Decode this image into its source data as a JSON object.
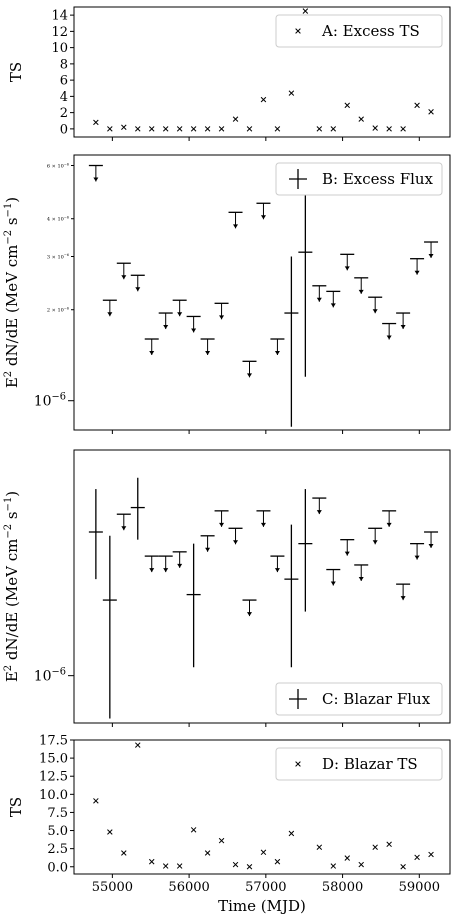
{
  "chart_data": [
    {
      "id": "A",
      "type": "scatter",
      "marker": "x",
      "ylabel": "TS",
      "legend": {
        "label": "A: Excess TS",
        "placement": "top-right"
      },
      "ylim": [
        -1,
        15
      ],
      "yticks": [
        0,
        2,
        4,
        6,
        8,
        10,
        12,
        14
      ],
      "ytick_labels": [
        "0",
        "2",
        "4",
        "6",
        "8",
        "10",
        "12",
        "14"
      ],
      "x": [
        54785,
        54967,
        55149,
        55331,
        55513,
        55695,
        55877,
        56059,
        56241,
        56423,
        56605,
        56787,
        56969,
        57151,
        57333,
        57515,
        57697,
        57879,
        58061,
        58243,
        58425,
        58607,
        58789,
        58971,
        59153
      ],
      "y": [
        0.8,
        0.0,
        0.2,
        0.0,
        0.0,
        0.0,
        0.0,
        0.0,
        0.0,
        0.0,
        1.2,
        0.0,
        3.6,
        0.0,
        4.4,
        14.5,
        0.0,
        0.0,
        2.9,
        1.2,
        0.1,
        0.0,
        0.0,
        2.9,
        2.1
      ]
    },
    {
      "id": "B",
      "type": "scatter",
      "marker": "errorbar",
      "ylabel": "E$^2$dN/dE (MeV cm$^{-2}$s$^{-1}$)",
      "ylabel_parts": {
        "pre": "E",
        "sup1": "2",
        "mid": " dN/dE (MeV cm",
        "sup2": "−2",
        "mid2": " s",
        "sup3": "−1",
        "post": ")"
      },
      "yscale": "log",
      "legend": {
        "label": "B: Excess Flux",
        "placement": "top-right"
      },
      "ylim": [
        8e-07,
        6.5e-06
      ],
      "major_tick": {
        "value": 1e-06,
        "label": "10",
        "exp": "−6"
      },
      "minor_ticks": [
        {
          "value": 2e-06,
          "label": "2 × 10",
          "exp": "−6"
        },
        {
          "value": 3e-06,
          "label": "3 × 10",
          "exp": "−6"
        },
        {
          "value": 4e-06,
          "label": "4 × 10",
          "exp": "−6"
        },
        {
          "value": 6e-06,
          "label": "6 × 10",
          "exp": "−6"
        }
      ],
      "x": [
        54785,
        54967,
        55149,
        55331,
        55513,
        55695,
        55877,
        56059,
        56241,
        56423,
        56605,
        56787,
        56969,
        57151,
        57333,
        57515,
        57697,
        57879,
        58061,
        58243,
        58425,
        58607,
        58789,
        58971,
        59153
      ],
      "y": [
        6e-06,
        2.15e-06,
        2.85e-06,
        2.6e-06,
        1.6e-06,
        1.95e-06,
        2.15e-06,
        1.9e-06,
        1.6e-06,
        2.1e-06,
        4.2e-06,
        1.35e-06,
        4.5e-06,
        1.6e-06,
        1.95e-06,
        3.1e-06,
        2.4e-06,
        2.3e-06,
        3.05e-06,
        2.55e-06,
        2.2e-06,
        1.8e-06,
        1.95e-06,
        2.95e-06,
        3.35e-06
      ],
      "upper_limit": [
        true,
        true,
        true,
        true,
        true,
        true,
        true,
        true,
        true,
        true,
        true,
        true,
        true,
        true,
        false,
        false,
        true,
        true,
        true,
        true,
        true,
        true,
        true,
        true,
        true
      ],
      "y_low": [
        null,
        null,
        null,
        null,
        null,
        null,
        null,
        null,
        null,
        null,
        null,
        null,
        null,
        null,
        8.2e-07,
        1.2e-06,
        null,
        null,
        null,
        null,
        null,
        null,
        null,
        null,
        null
      ],
      "y_high": [
        null,
        null,
        null,
        null,
        null,
        null,
        null,
        null,
        null,
        null,
        null,
        null,
        null,
        null,
        3e-06,
        5.2e-06,
        null,
        null,
        null,
        null,
        null,
        null,
        null,
        null,
        null
      ]
    },
    {
      "id": "C",
      "type": "scatter",
      "marker": "errorbar",
      "ylabel": "E$^2$dN/dE (MeV cm$^{-2}$s$^{-1}$)",
      "ylabel_parts": {
        "pre": "E",
        "sup1": "2",
        "mid": " dN/dE (MeV cm",
        "sup2": "−2",
        "mid2": " s",
        "sup3": "−1",
        "post": ")"
      },
      "yscale": "log",
      "legend": {
        "label": "C: Blazar Flux",
        "placement": "bottom-right"
      },
      "ylim": [
        7.6e-07,
        3.7e-06
      ],
      "major_tick": {
        "value": 1e-06,
        "label": "10",
        "exp": "−6"
      },
      "x": [
        54785,
        54967,
        55149,
        55331,
        55513,
        55695,
        55877,
        56059,
        56241,
        56423,
        56605,
        56787,
        56969,
        57151,
        57333,
        57515,
        57697,
        57879,
        58061,
        58243,
        58425,
        58607,
        58789,
        58971,
        59153
      ],
      "y": [
        2.3e-06,
        1.55e-06,
        2.55e-06,
        2.65e-06,
        2e-06,
        2e-06,
        2.05e-06,
        1.6e-06,
        2.25e-06,
        2.6e-06,
        2.35e-06,
        1.55e-06,
        2.6e-06,
        2e-06,
        1.75e-06,
        2.15e-06,
        2.8e-06,
        1.85e-06,
        2.2e-06,
        1.9e-06,
        2.35e-06,
        2.6e-06,
        1.7e-06,
        2.15e-06,
        2.3e-06
      ],
      "upper_limit": [
        false,
        false,
        true,
        false,
        true,
        true,
        true,
        false,
        true,
        true,
        true,
        true,
        true,
        true,
        false,
        false,
        true,
        true,
        true,
        true,
        true,
        true,
        true,
        true,
        true
      ],
      "y_low": [
        1.75e-06,
        7.8e-07,
        null,
        2.2e-06,
        null,
        null,
        null,
        1.05e-06,
        null,
        null,
        null,
        null,
        null,
        null,
        1.05e-06,
        1.45e-06,
        null,
        null,
        null,
        null,
        null,
        null,
        null,
        null,
        null
      ],
      "y_high": [
        2.95e-06,
        2.25e-06,
        null,
        3.15e-06,
        null,
        null,
        null,
        2.15e-06,
        null,
        null,
        null,
        null,
        null,
        null,
        2.4e-06,
        2.95e-06,
        null,
        null,
        null,
        null,
        null,
        null,
        null,
        null,
        null
      ]
    },
    {
      "id": "D",
      "type": "scatter",
      "marker": "x",
      "ylabel": "TS",
      "xlabel": "Time (MJD)",
      "legend": {
        "label": "D: Blazar TS",
        "placement": "top-right"
      },
      "ylim": [
        -1,
        17.5
      ],
      "yticks": [
        0.0,
        2.5,
        5.0,
        7.5,
        10.0,
        12.5,
        15.0,
        17.5
      ],
      "ytick_labels": [
        "0.0",
        "2.5",
        "5.0",
        "7.5",
        "10.0",
        "12.5",
        "15.0",
        "17.5"
      ],
      "xlim": [
        54500,
        59400
      ],
      "xticks": [
        55000,
        56000,
        57000,
        58000,
        59000
      ],
      "xtick_labels": [
        "55000",
        "56000",
        "57000",
        "58000",
        "59000"
      ],
      "x": [
        54785,
        54967,
        55149,
        55331,
        55513,
        55695,
        55877,
        56059,
        56241,
        56423,
        56605,
        56787,
        56969,
        57151,
        57333,
        57515,
        57697,
        57879,
        58061,
        58243,
        58425,
        58607,
        58789,
        58971,
        59153
      ],
      "y": [
        9.1,
        4.8,
        1.9,
        16.8,
        0.7,
        0.1,
        0.1,
        5.1,
        1.9,
        3.6,
        0.3,
        0.0,
        2.0,
        0.7,
        4.6,
        13.5,
        2.7,
        0.1,
        1.2,
        0.3,
        2.7,
        3.1,
        0.0,
        1.3,
        1.7
      ]
    }
  ]
}
